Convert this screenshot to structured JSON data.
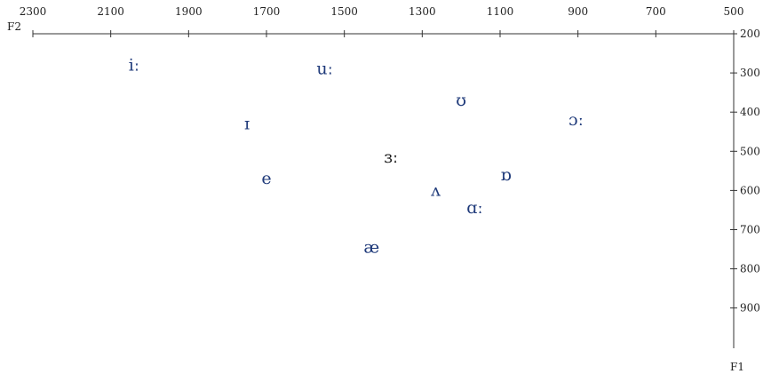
{
  "chart_data": {
    "type": "scatter",
    "title": "",
    "xlabel": "F2",
    "ylabel": "F1",
    "x_axis": {
      "label": "F2",
      "range": [
        2300,
        500
      ],
      "reversed": true,
      "position": "top",
      "ticks": [
        2300,
        2100,
        1900,
        1700,
        1500,
        1300,
        1100,
        900,
        700,
        500
      ]
    },
    "y_axis": {
      "label": "F1",
      "range": [
        200,
        1050
      ],
      "reversed": true,
      "position": "right",
      "ticks": [
        200,
        300,
        400,
        500,
        600,
        700,
        800,
        900
      ]
    },
    "grid": false,
    "legend": "none",
    "colors": {
      "vowel": "#1f3a7a",
      "central_vowel": "#1a1a1a",
      "axis": "#333333"
    },
    "points": [
      {
        "label": "iː",
        "F2": 2040,
        "F1": 280
      },
      {
        "label": "uː",
        "F2": 1550,
        "F1": 290
      },
      {
        "label": "ʊ",
        "F2": 1200,
        "F1": 370
      },
      {
        "label": "ɔː",
        "F2": 905,
        "F1": 420
      },
      {
        "label": "ɪ",
        "F2": 1750,
        "F1": 430
      },
      {
        "label": "ɜː",
        "F2": 1380,
        "F1": 515,
        "central": true
      },
      {
        "label": "ɒ",
        "F2": 1085,
        "F1": 560
      },
      {
        "label": "e",
        "F2": 1700,
        "F1": 570
      },
      {
        "label": "ʌ",
        "F2": 1265,
        "F1": 600
      },
      {
        "label": "ɑː",
        "F2": 1165,
        "F1": 645
      },
      {
        "label": "æ",
        "F2": 1430,
        "F1": 745
      }
    ]
  }
}
